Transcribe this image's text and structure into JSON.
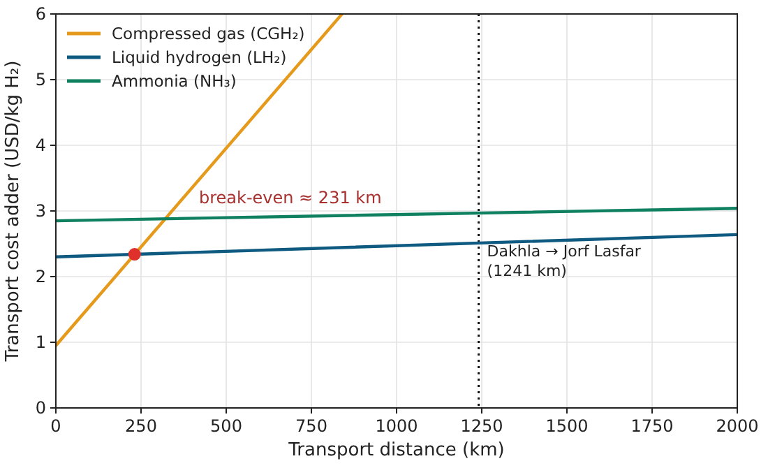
{
  "chart_data": {
    "type": "line",
    "xlabel": "Transport distance (km)",
    "ylabel": "Transport cost adder (USD/kg H₂)",
    "xlim": [
      0,
      2000
    ],
    "xticks": [
      0,
      250,
      500,
      750,
      1000,
      1250,
      1500,
      1750,
      2000
    ],
    "ylim": [
      0,
      6
    ],
    "yticks": [
      0,
      1,
      2,
      3,
      4,
      5,
      6
    ],
    "grid": true,
    "legend": "top left",
    "marker": "none",
    "line_style": "solid",
    "series": [
      {
        "name": "Compressed gas (CGH₂)",
        "color": "#e69a1c",
        "x": [
          0,
          840
        ],
        "values": [
          0.95,
          6
        ]
      },
      {
        "name": "Liquid hydrogen (LH₂)",
        "color": "#0f5a80",
        "x": [
          0,
          2000
        ],
        "values": [
          2.3,
          2.64
        ]
      },
      {
        "name": "Ammonia (NH₃)",
        "color": "#0f8060",
        "x": [
          0,
          2000
        ],
        "values": [
          2.85,
          3.04
        ]
      },
      {
        "type": "scatter",
        "color": "#e0302c",
        "marker": "circle",
        "x": [
          231
        ],
        "values": [
          2.34
        ]
      }
    ],
    "ref_lines": [
      {
        "axis": "x",
        "value": 1241,
        "label": "Dakhla → Jorf Lasfar\n(1241 km)",
        "color": "#111111",
        "line_style": "dotted"
      }
    ],
    "annotations": [
      "break-even ≈ 231 km"
    ]
  }
}
